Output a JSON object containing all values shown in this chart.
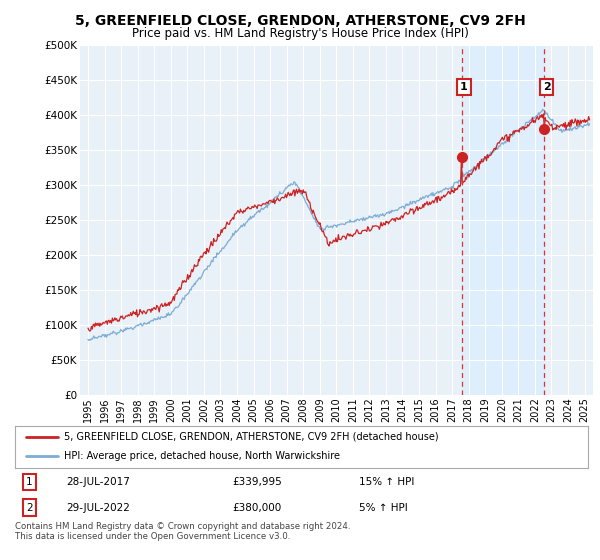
{
  "title": "5, GREENFIELD CLOSE, GRENDON, ATHERSTONE, CV9 2FH",
  "subtitle": "Price paid vs. HM Land Registry's House Price Index (HPI)",
  "title_fontsize": 10,
  "subtitle_fontsize": 8.5,
  "ylabel_ticks": [
    "£0",
    "£50K",
    "£100K",
    "£150K",
    "£200K",
    "£250K",
    "£300K",
    "£350K",
    "£400K",
    "£450K",
    "£500K"
  ],
  "ytick_values": [
    0,
    50000,
    100000,
    150000,
    200000,
    250000,
    300000,
    350000,
    400000,
    450000,
    500000
  ],
  "ylim": [
    0,
    500000
  ],
  "xlim_start": 1994.5,
  "xlim_end": 2025.5,
  "hpi_color": "#7dadd4",
  "price_color": "#cc2222",
  "vline_color": "#dd3333",
  "sale1_x": 2017.57,
  "sale1_y": 339995,
  "sale1_label": "1",
  "sale2_x": 2022.57,
  "sale2_y": 380000,
  "sale2_label": "2",
  "shade_color": "#ddeeff",
  "legend_line1": "5, GREENFIELD CLOSE, GRENDON, ATHERSTONE, CV9 2FH (detached house)",
  "legend_line2": "HPI: Average price, detached house, North Warwickshire",
  "table_row1": [
    "1",
    "28-JUL-2017",
    "£339,995",
    "15% ↑ HPI"
  ],
  "table_row2": [
    "2",
    "29-JUL-2022",
    "£380,000",
    "5% ↑ HPI"
  ],
  "footnote": "Contains HM Land Registry data © Crown copyright and database right 2024.\nThis data is licensed under the Open Government Licence v3.0.",
  "plot_bg_color": "#e8f0f8"
}
